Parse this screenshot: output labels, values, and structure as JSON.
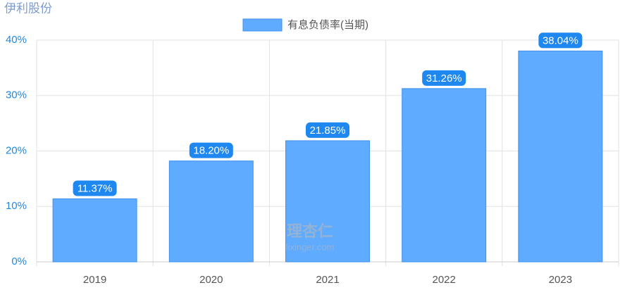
{
  "chart_data": {
    "type": "bar",
    "title": "伊利股份",
    "categories": [
      "2019",
      "2020",
      "2021",
      "2022",
      "2023"
    ],
    "series": [
      {
        "name": "有息负债率(当期)",
        "color": "#5eabff",
        "values": [
          11.37,
          18.2,
          21.85,
          31.26,
          38.04
        ],
        "value_labels": [
          "11.37%",
          "18.20%",
          "21.85%",
          "31.26%",
          "38.04%"
        ]
      }
    ],
    "ylim": [
      0,
      40
    ],
    "yticks": [
      {
        "value": 0,
        "label": "0%"
      },
      {
        "value": 10,
        "label": "10%"
      },
      {
        "value": 20,
        "label": "20%"
      },
      {
        "value": 30,
        "label": "30%"
      },
      {
        "value": 40,
        "label": "40%"
      }
    ],
    "grid": true,
    "legend": "top",
    "watermark": {
      "name": "理杏仁",
      "site": "lixinger.com"
    }
  }
}
